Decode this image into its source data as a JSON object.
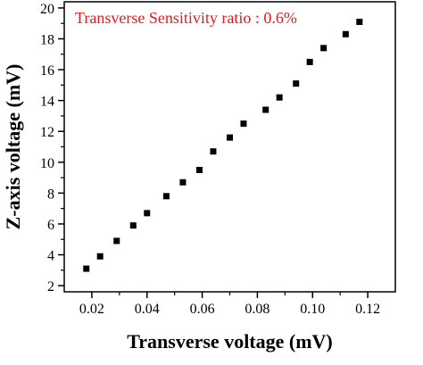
{
  "chart_data": {
    "type": "scatter",
    "annotation": "Transverse Sensitivity ratio : 0.6%",
    "annotation_color": "#e8191a",
    "xlabel": "Transverse voltage (mV)",
    "ylabel": "Z-axis voltage (mV)",
    "xlim": [
      0.01,
      0.13
    ],
    "ylim": [
      1.6,
      20.4
    ],
    "x_ticks": [
      0.02,
      0.04,
      0.06,
      0.08,
      0.1,
      0.12
    ],
    "x_tick_labels": [
      "0.02",
      "0.04",
      "0.06",
      "0.08",
      "0.10",
      "0.12"
    ],
    "y_ticks": [
      2,
      4,
      6,
      8,
      10,
      12,
      14,
      16,
      18,
      20
    ],
    "y_tick_labels": [
      "2",
      "4",
      "6",
      "8",
      "10",
      "12",
      "14",
      "16",
      "18",
      "20"
    ],
    "grid": false,
    "marker": "square",
    "marker_color": "#000000",
    "series": [
      {
        "x": [
          0.018,
          0.023,
          0.029,
          0.035,
          0.04,
          0.047,
          0.053,
          0.059,
          0.064,
          0.07,
          0.075,
          0.083,
          0.088,
          0.094,
          0.099,
          0.104,
          0.112,
          0.117
        ],
        "y": [
          3.1,
          3.9,
          4.9,
          5.9,
          6.7,
          7.8,
          8.7,
          9.5,
          10.7,
          11.6,
          12.5,
          13.4,
          14.2,
          15.1,
          16.5,
          17.4,
          18.3,
          19.1
        ]
      }
    ]
  }
}
